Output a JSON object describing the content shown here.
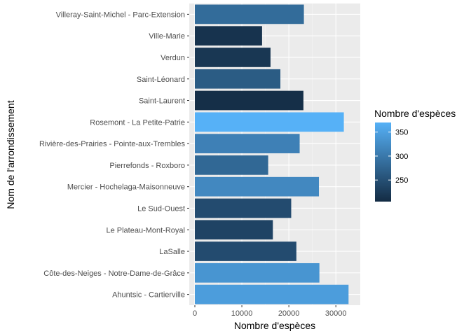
{
  "chart_data": {
    "type": "bar",
    "orientation": "horizontal",
    "xlabel": "Nombre d'espèces",
    "ylabel": "Nom de l'arrondissement",
    "xlim": [
      0,
      34000
    ],
    "x_ticks": [
      0,
      10000,
      20000,
      30000
    ],
    "grid": true,
    "legend_placement": "right",
    "categories": [
      "Villeray-Saint-Michel - Parc-Extension",
      "Ville-Marie",
      "Verdun",
      "Saint-Léonard",
      "Saint-Laurent",
      "Rosemont - La Petite-Patrie",
      "Rivière-des-Prairies - Pointe-aux-Trembles",
      "Pierrefonds - Roxboro",
      "Mercier - Hochelaga-Maisonneuve",
      "Le Sud-Ouest",
      "Le Plateau-Mont-Royal",
      "LaSalle",
      "Côte-des-Neiges - Notre-Dame-de-Grâce",
      "Ahuntsic - Cartierville"
    ],
    "values": [
      23200,
      14300,
      16100,
      18200,
      23100,
      31700,
      22300,
      15600,
      26400,
      20500,
      16600,
      21600,
      26500,
      32700
    ],
    "fill_values": [
      285,
      215,
      220,
      265,
      210,
      370,
      310,
      280,
      320,
      245,
      235,
      245,
      335,
      345
    ],
    "legend": {
      "title": "Nombre d'espèces",
      "breaks": [
        250,
        300,
        350
      ],
      "range": [
        205,
        370
      ],
      "color_low": "#132B43",
      "color_high": "#56B1F7"
    },
    "colors": {
      "panel_background": "#EBEBEB",
      "grid_major": "#FFFFFF",
      "tick_text": "#4D4D4D"
    }
  }
}
